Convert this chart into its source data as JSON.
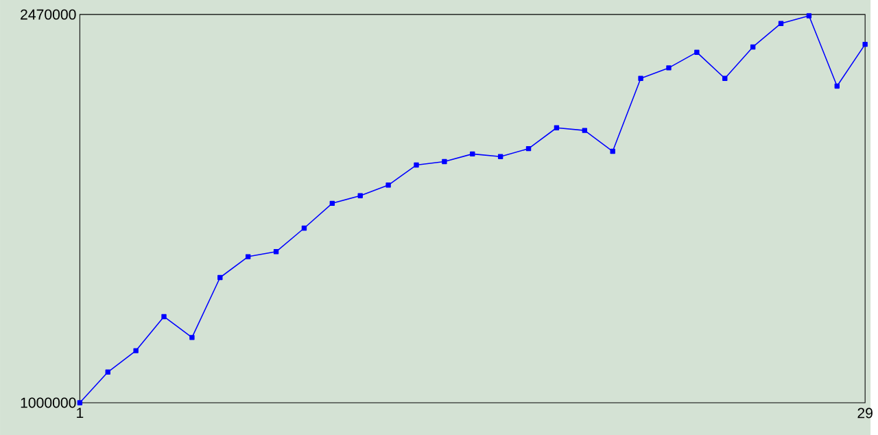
{
  "chart_data": {
    "type": "line",
    "x": [
      1,
      2,
      3,
      4,
      5,
      6,
      7,
      8,
      9,
      10,
      11,
      12,
      13,
      14,
      15,
      16,
      17,
      18,
      19,
      20,
      21,
      22,
      23,
      24,
      25,
      26,
      27,
      28,
      29
    ],
    "series": [
      {
        "color": "#0000ff",
        "values": [
          1000000,
          1116000,
          1197000,
          1326000,
          1247000,
          1474000,
          1553000,
          1572000,
          1661000,
          1755000,
          1784000,
          1824000,
          1900000,
          1913000,
          1942000,
          1932000,
          1962000,
          2041000,
          2031000,
          1952000,
          2228000,
          2268000,
          2327000,
          2228000,
          2347000,
          2436000,
          2465000,
          2199000,
          2357000
        ]
      }
    ],
    "xlim": [
      1,
      29
    ],
    "xticks": [
      1,
      29
    ],
    "ylim": [
      1000000,
      2470000
    ],
    "yticks": [
      1000000,
      2470000
    ],
    "marker": "square",
    "line_style": "solid"
  }
}
